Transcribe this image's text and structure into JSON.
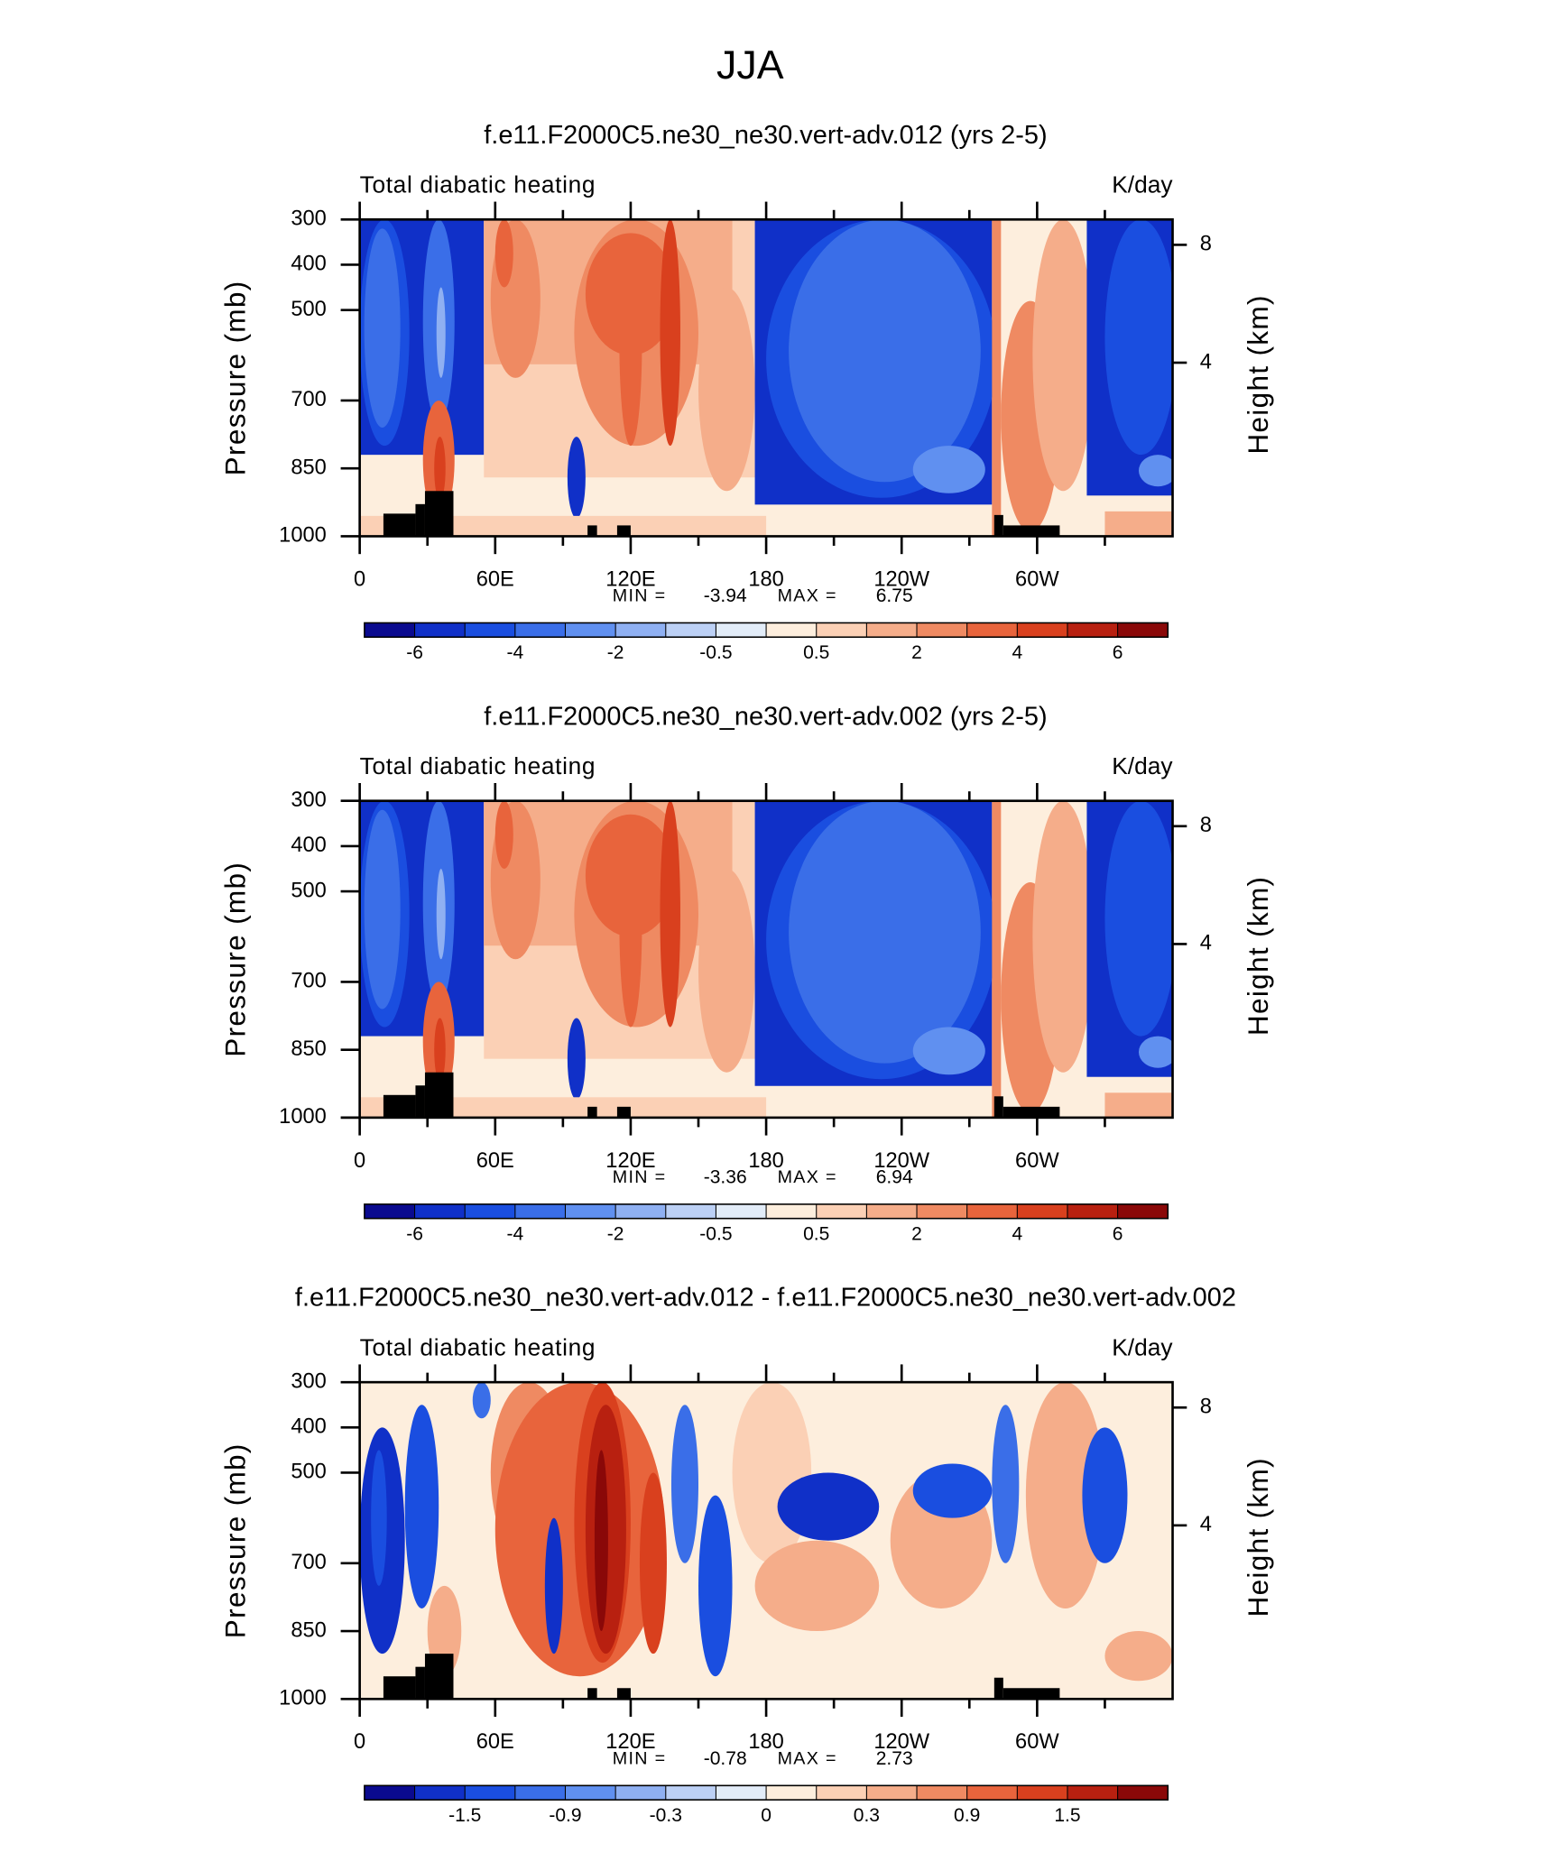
{
  "title": "JJA",
  "chart_data": [
    {
      "type": "contour",
      "title": "f.e11.F2000C5.ne30_ne30.vert-adv.012 (yrs 2-5)",
      "subtitle_left": "Total diabatic heating",
      "subtitle_right": "K/day",
      "ylabel": "Pressure (mb)",
      "y2label": "Height (km)",
      "xlim": [
        0,
        360
      ],
      "xticks": [
        0,
        {
          "value": 60,
          "label": "60E"
        },
        {
          "value": 120,
          "label": "120E"
        },
        180,
        {
          "value": 240,
          "label": "120W"
        },
        {
          "value": 300,
          "label": "60W"
        }
      ],
      "xminorticks": [
        30,
        90,
        150,
        210,
        270,
        330
      ],
      "ylim": [
        1000,
        300
      ],
      "yticks": [
        300,
        400,
        500,
        700,
        850,
        1000
      ],
      "y2ticks": [
        4,
        8
      ],
      "min_label": "MIN =",
      "min": -3.94,
      "max_label": "MAX =",
      "max": 6.75,
      "colorbar": {
        "colors": [
          "#0a0a8f",
          "#1030c8",
          "#1a4ee0",
          "#3a6ee8",
          "#6090f0",
          "#8fb0f2",
          "#bcd0f5",
          "#e2ecf8",
          "#fdeedd",
          "#fbd0b5",
          "#f5ad8a",
          "#ef8a62",
          "#e8643c",
          "#d9401e",
          "#b82010",
          "#8a0808"
        ],
        "labels": [
          -6,
          -4,
          -2,
          -0.5,
          0.5,
          2,
          4,
          6
        ]
      }
    },
    {
      "type": "contour",
      "title": "f.e11.F2000C5.ne30_ne30.vert-adv.002 (yrs 2-5)",
      "subtitle_left": "Total diabatic heating",
      "subtitle_right": "K/day",
      "ylabel": "Pressure (mb)",
      "y2label": "Height (km)",
      "xlim": [
        0,
        360
      ],
      "xticks": [
        0,
        {
          "value": 60,
          "label": "60E"
        },
        {
          "value": 120,
          "label": "120E"
        },
        180,
        {
          "value": 240,
          "label": "120W"
        },
        {
          "value": 300,
          "label": "60W"
        }
      ],
      "xminorticks": [
        30,
        90,
        150,
        210,
        270,
        330
      ],
      "ylim": [
        1000,
        300
      ],
      "yticks": [
        300,
        400,
        500,
        700,
        850,
        1000
      ],
      "y2ticks": [
        4,
        8
      ],
      "min_label": "MIN =",
      "min": -3.36,
      "max_label": "MAX =",
      "max": 6.94,
      "colorbar": {
        "colors": [
          "#0a0a8f",
          "#1030c8",
          "#1a4ee0",
          "#3a6ee8",
          "#6090f0",
          "#8fb0f2",
          "#bcd0f5",
          "#e2ecf8",
          "#fdeedd",
          "#fbd0b5",
          "#f5ad8a",
          "#ef8a62",
          "#e8643c",
          "#d9401e",
          "#b82010",
          "#8a0808"
        ],
        "labels": [
          -6,
          -4,
          -2,
          -0.5,
          0.5,
          2,
          4,
          6
        ]
      }
    },
    {
      "type": "contour",
      "title": "f.e11.F2000C5.ne30_ne30.vert-adv.012 - f.e11.F2000C5.ne30_ne30.vert-adv.002",
      "subtitle_left": "Total diabatic heating",
      "subtitle_right": "K/day",
      "ylabel": "Pressure (mb)",
      "y2label": "Height (km)",
      "xlim": [
        0,
        360
      ],
      "xticks": [
        0,
        {
          "value": 60,
          "label": "60E"
        },
        {
          "value": 120,
          "label": "120E"
        },
        180,
        {
          "value": 240,
          "label": "120W"
        },
        {
          "value": 300,
          "label": "60W"
        }
      ],
      "xminorticks": [
        30,
        90,
        150,
        210,
        270,
        330
      ],
      "ylim": [
        1000,
        300
      ],
      "yticks": [
        300,
        400,
        500,
        700,
        850,
        1000
      ],
      "y2ticks": [
        4,
        8
      ],
      "min_label": "MIN =",
      "min": -0.78,
      "max_label": "MAX =",
      "max": 2.73,
      "colorbar": {
        "colors": [
          "#0a0a8f",
          "#1030c8",
          "#1a4ee0",
          "#3a6ee8",
          "#6090f0",
          "#8fb0f2",
          "#bcd0f5",
          "#e2ecf8",
          "#fdeedd",
          "#fbd0b5",
          "#f5ad8a",
          "#ef8a62",
          "#e8643c",
          "#d9401e",
          "#b82010",
          "#8a0808"
        ],
        "labels": [
          -1.5,
          -0.9,
          -0.3,
          0,
          0.3,
          0.9,
          1.5
        ]
      }
    }
  ]
}
